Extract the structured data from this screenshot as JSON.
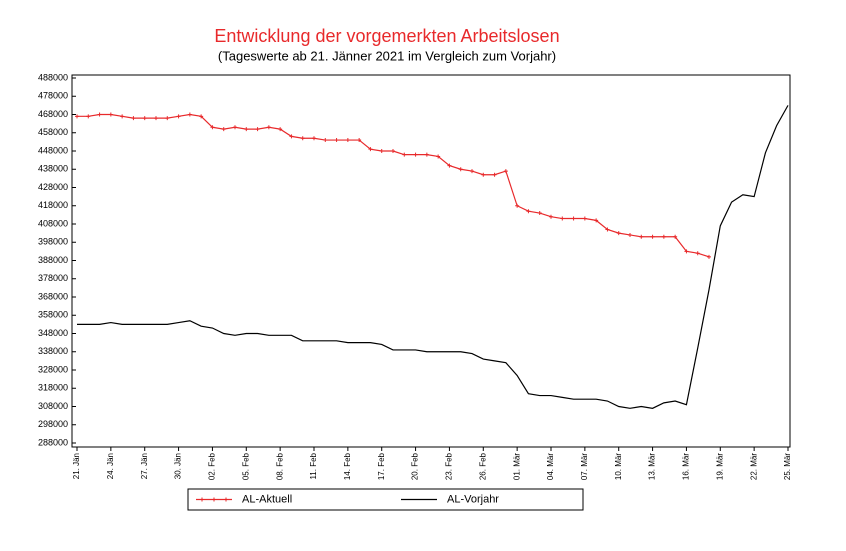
{
  "chart_data": {
    "type": "line",
    "title": "Entwicklung der vorgemerkten Arbeitslosen",
    "subtitle": "(Tageswerte ab 21. Jänner 2021  im Vergleich zum Vorjahr)",
    "categories": [
      "21. Jän",
      null,
      null,
      "24. Jän",
      null,
      null,
      "27. Jän",
      null,
      null,
      "30. Jän",
      null,
      null,
      "02. Feb",
      null,
      null,
      "05. Feb",
      null,
      null,
      "08. Feb",
      null,
      null,
      "11. Feb",
      null,
      null,
      "14. Feb",
      null,
      null,
      "17. Feb",
      null,
      null,
      "20. Feb",
      null,
      null,
      "23. Feb",
      null,
      null,
      "26. Feb",
      null,
      null,
      "01. Mär",
      null,
      null,
      "04. Mär",
      null,
      null,
      "07. Mär",
      null,
      null,
      "10. Mär",
      null,
      null,
      "13. Mär",
      null,
      null,
      "16. Mär",
      null,
      null,
      "19. Mär",
      null,
      null,
      "22. Mär",
      null,
      null,
      "25. Mär"
    ],
    "series": [
      {
        "name": "AL-Aktuell",
        "color": "#e8292b",
        "markers": true,
        "values": [
          467000,
          467000,
          468000,
          468000,
          467000,
          466000,
          466000,
          466000,
          466000,
          467000,
          468000,
          467000,
          461000,
          460000,
          461000,
          460000,
          460000,
          461000,
          460000,
          456000,
          455000,
          455000,
          454000,
          454000,
          454000,
          454000,
          449000,
          448000,
          448000,
          446000,
          446000,
          446000,
          445000,
          440000,
          438000,
          437000,
          435000,
          435000,
          437000,
          418000,
          415000,
          414000,
          412000,
          411000,
          411000,
          411000,
          410000,
          405000,
          403000,
          402000,
          401000,
          401000,
          401000,
          401000,
          393000,
          392000,
          390000,
          null,
          null,
          null,
          null,
          null,
          null,
          null
        ]
      },
      {
        "name": "AL-Vorjahr",
        "color": "#000000",
        "markers": false,
        "values": [
          353000,
          353000,
          353000,
          354000,
          353000,
          353000,
          353000,
          353000,
          353000,
          354000,
          355000,
          352000,
          351000,
          348000,
          347000,
          348000,
          348000,
          347000,
          347000,
          347000,
          344000,
          344000,
          344000,
          344000,
          343000,
          343000,
          343000,
          342000,
          339000,
          339000,
          339000,
          338000,
          338000,
          338000,
          338000,
          337000,
          334000,
          333000,
          332000,
          325000,
          315000,
          314000,
          314000,
          313000,
          312000,
          312000,
          312000,
          311000,
          308000,
          307000,
          308000,
          307000,
          310000,
          311000,
          309000,
          340000,
          372000,
          407000,
          420000,
          424000,
          423000,
          447000,
          462000,
          473000
        ]
      }
    ],
    "ylim": [
      288000,
      488000
    ],
    "yticks": [
      288000,
      298000,
      308000,
      318000,
      328000,
      338000,
      348000,
      358000,
      368000,
      378000,
      388000,
      398000,
      408000,
      418000,
      428000,
      438000,
      448000,
      458000,
      468000,
      478000,
      488000
    ],
    "grid": false
  }
}
